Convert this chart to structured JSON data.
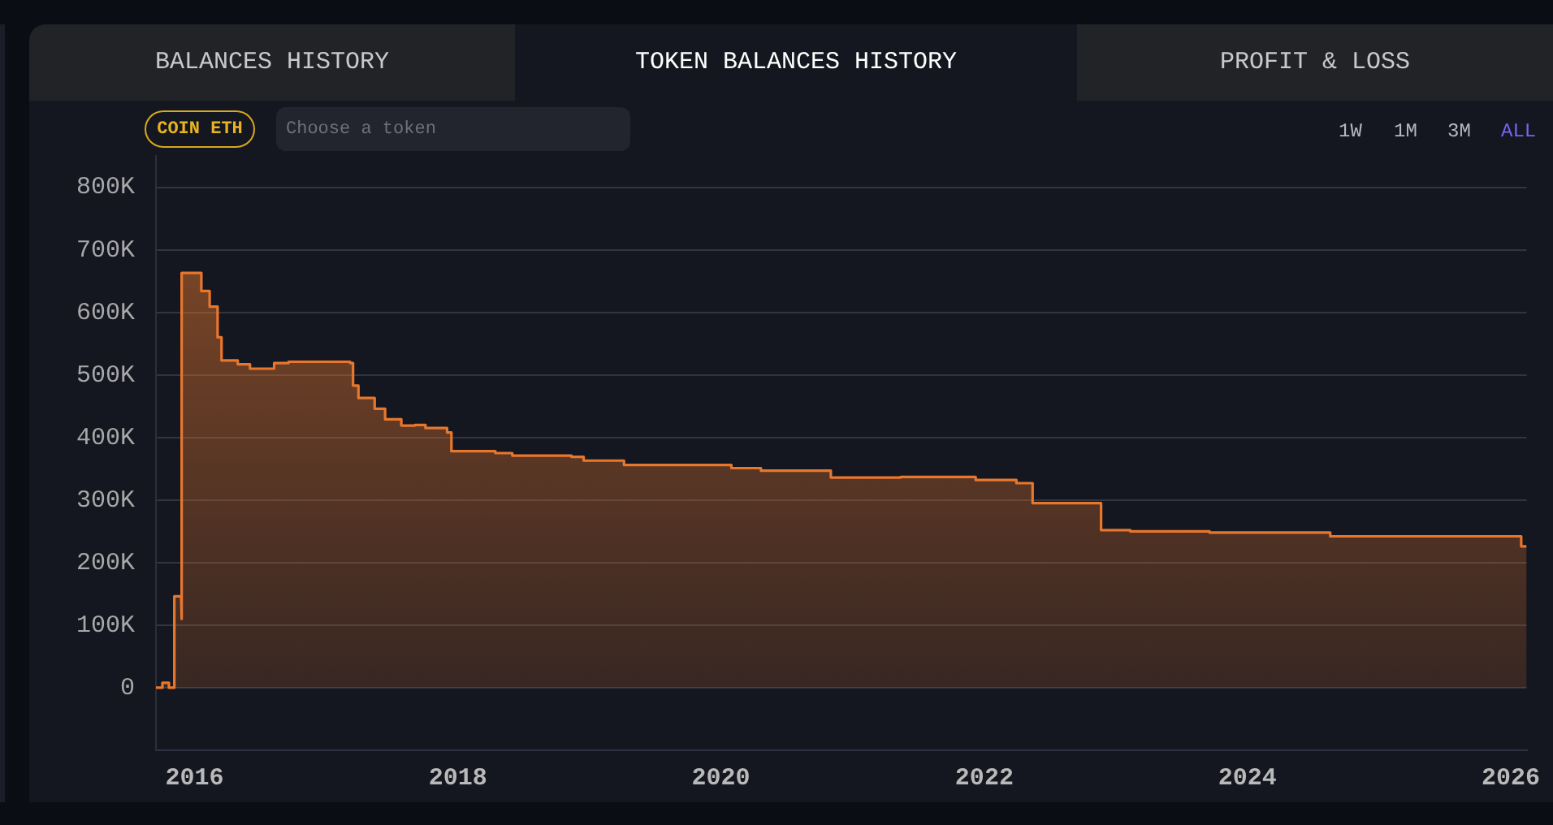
{
  "chart_data": {
    "type": "area",
    "title": "TOKEN BALANCES HISTORY",
    "annotations": [
      "BALANCES HISTORY",
      "PROFIT & LOSS",
      "COIN ETH",
      "Choose a token",
      "1W",
      "1M",
      "3M",
      "ALL"
    ],
    "x": [
      "2015-09-16",
      "2015-10-04",
      "2015-10-04",
      "2015-10-22",
      "2015-10-22",
      "2015-11-06",
      "2015-11-06",
      "2015-11-25",
      "2015-11-25",
      "2015-11-27",
      "2015-11-27",
      "2016-01-20",
      "2016-01-20",
      "2016-02-12",
      "2016-02-12",
      "2016-03-05",
      "2016-03-05",
      "2016-03-16",
      "2016-03-16",
      "2016-04-30",
      "2016-04-30",
      "2016-06-03",
      "2016-06-03",
      "2016-08-09",
      "2016-08-09",
      "2016-09-18",
      "2016-09-18",
      "2017-03-08",
      "2017-03-08",
      "2017-03-16",
      "2017-03-16",
      "2017-03-31",
      "2017-03-31",
      "2017-05-15",
      "2017-05-15",
      "2017-06-13",
      "2017-06-13",
      "2017-07-28",
      "2017-07-28",
      "2017-09-04",
      "2017-09-04",
      "2017-10-03",
      "2017-10-03",
      "2017-12-02",
      "2017-12-02",
      "2017-12-14",
      "2017-12-14",
      "2018-04-15",
      "2018-04-15",
      "2018-06-01",
      "2018-06-01",
      "2018-11-12",
      "2018-11-12",
      "2018-12-16",
      "2018-12-16",
      "2019-04-07",
      "2019-04-07",
      "2020-01-30",
      "2020-01-30",
      "2020-04-21",
      "2020-04-21",
      "2020-11-01",
      "2020-11-01",
      "2021-05-14",
      "2021-05-14",
      "2021-12-08",
      "2021-12-08",
      "2022-03-31",
      "2022-03-31",
      "2022-05-15",
      "2022-05-15",
      "2022-11-21",
      "2022-11-21",
      "2023-02-10",
      "2023-02-10",
      "2023-09-18",
      "2023-09-18",
      "2024-08-18",
      "2024-08-18",
      "2026-01-30",
      "2026-01-30",
      "2026-02-14"
    ],
    "series": [
      {
        "color": "#e8772e",
        "values": [
          0,
          0,
          8000,
          8000,
          0,
          0,
          146000,
          146000,
          110000,
          110000,
          663000,
          663000,
          634000,
          634000,
          609000,
          609000,
          560000,
          560000,
          523000,
          523000,
          517000,
          517000,
          510000,
          510000,
          519000,
          519000,
          521000,
          521000,
          519000,
          519000,
          483000,
          483000,
          463000,
          463000,
          446000,
          446000,
          429000,
          429000,
          419000,
          419000,
          420000,
          420000,
          415000,
          415000,
          408000,
          408000,
          378000,
          378000,
          375000,
          375000,
          371000,
          371000,
          369000,
          369000,
          363000,
          363000,
          356000,
          356000,
          351000,
          351000,
          347000,
          347000,
          336000,
          336000,
          337000,
          337000,
          332000,
          332000,
          327000,
          327000,
          295000,
          295000,
          252000,
          252000,
          250000,
          250000,
          248000,
          248000,
          242000,
          242000,
          226000,
          226000
        ]
      }
    ],
    "xlim": [
      "2015-09-16",
      "2026-02-14"
    ],
    "xticks": [
      "2016",
      "2018",
      "2020",
      "2022",
      "2024",
      "2026"
    ],
    "ylim": [
      -100000,
      850000
    ],
    "yticks": [
      {
        "value": 0,
        "label": "0"
      },
      {
        "value": 100000,
        "label": "100K"
      },
      {
        "value": 200000,
        "label": "200K"
      },
      {
        "value": 300000,
        "label": "300K"
      },
      {
        "value": 400000,
        "label": "400K"
      },
      {
        "value": 500000,
        "label": "500K"
      },
      {
        "value": 600000,
        "label": "600K"
      },
      {
        "value": 700000,
        "label": "700K"
      },
      {
        "value": 800000,
        "label": "800K"
      }
    ],
    "grid": "y",
    "legend": false
  }
}
